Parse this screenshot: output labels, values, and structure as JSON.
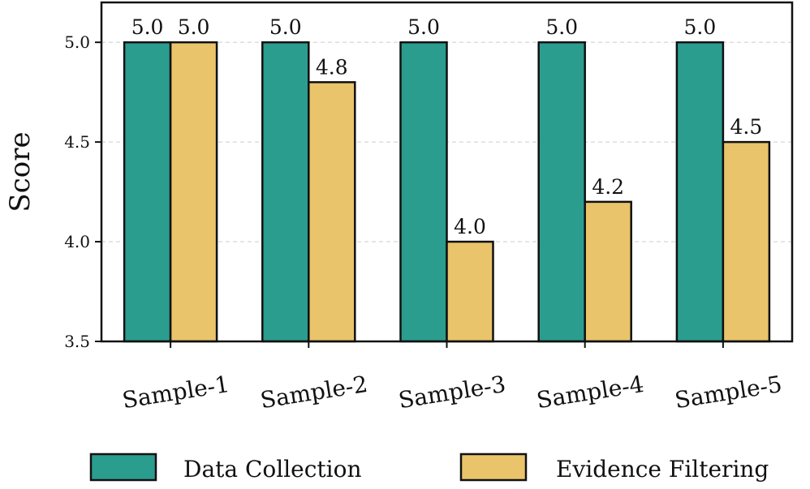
{
  "chart_data": {
    "type": "bar",
    "categories": [
      "Sample-1",
      "Sample-2",
      "Sample-3",
      "Sample-4",
      "Sample-5"
    ],
    "series": [
      {
        "name": "Data Collection",
        "values": [
          5.0,
          5.0,
          5.0,
          5.0,
          5.0
        ],
        "color": "#2a9d8f"
      },
      {
        "name": "Evidence Filtering",
        "values": [
          5.0,
          4.8,
          4.0,
          4.2,
          4.5
        ],
        "color": "#e9c46a"
      }
    ],
    "data_labels": [
      [
        "5.0",
        "5.0",
        "5.0",
        "5.0",
        "5.0"
      ],
      [
        "5.0",
        "4.8",
        "4.0",
        "4.2",
        "4.5"
      ]
    ],
    "title": "",
    "xlabel": "",
    "ylabel": "Score",
    "ylim": [
      3.5,
      5.2
    ],
    "yticks": [
      3.5,
      4.0,
      4.5,
      5.0
    ],
    "ytick_labels": [
      "3.5",
      "4.0",
      "4.5",
      "5.0"
    ],
    "grid": "horizontal dashed",
    "legend_placement": "bottom",
    "x_tick_rotation": "slanted"
  }
}
